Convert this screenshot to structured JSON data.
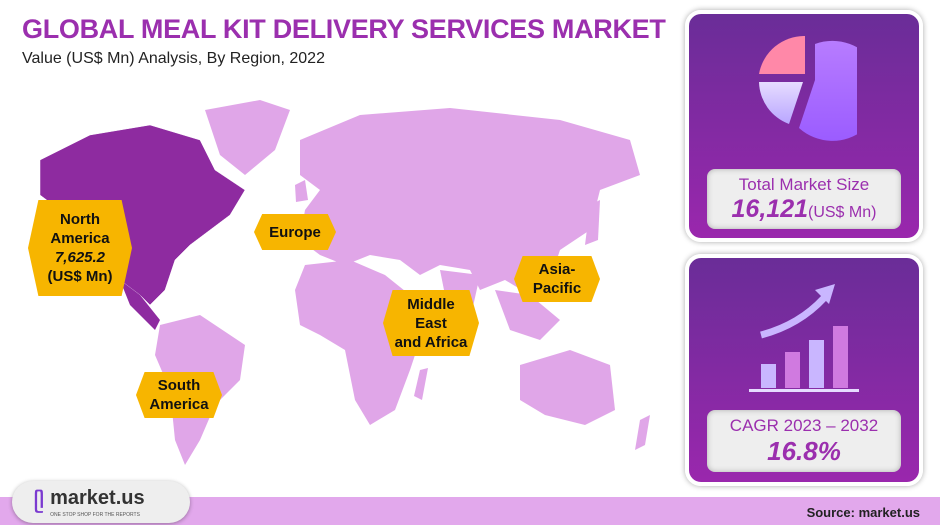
{
  "header": {
    "title": "GLOBAL MEAL KIT DELIVERY SERVICES MARKET",
    "subtitle": "Value (US$ Mn) Analysis, By Region, 2022"
  },
  "map": {
    "highlight_color": "#8e2ba0",
    "base_color": "#e0a6e8",
    "label_color": "#f7b500",
    "regions": [
      {
        "name_line1": "North",
        "name_line2": "America",
        "value": "7,625.2",
        "unit": "(US$ Mn)"
      },
      {
        "name": "Europe"
      },
      {
        "name_line1": "Middle",
        "name_line2": "East",
        "name_line3": "and Africa"
      },
      {
        "name_line1": "Asia-",
        "name_line2": "Pacific"
      },
      {
        "name_line1": "South",
        "name_line2": "America"
      }
    ]
  },
  "market_size": {
    "label": "Total Market Size",
    "value": "16,121",
    "unit": "(US$ Mn)",
    "icon": "pie-chart-icon"
  },
  "cagr": {
    "label": "CAGR 2023 – 2032",
    "value": "16.8%",
    "icon": "growth-bar-chart-icon"
  },
  "footer": {
    "logo_text": "market.us",
    "tagline": "ONE STOP SHOP FOR THE REPORTS",
    "source": "Source: market.us"
  }
}
